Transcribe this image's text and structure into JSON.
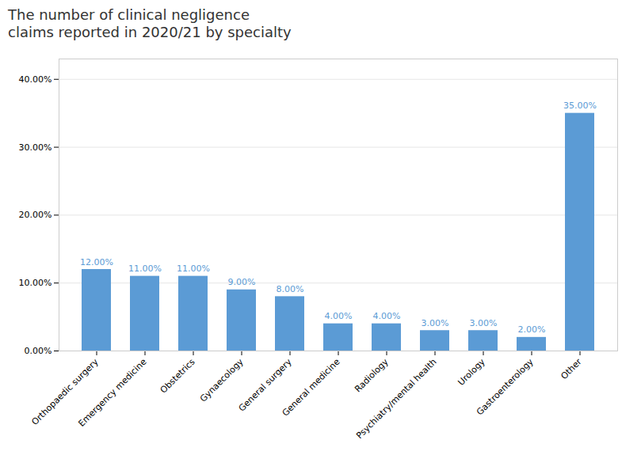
{
  "chart_data": {
    "type": "bar",
    "title": "The number of clinical negligence\nclaims reported in 2020/21 by specialty",
    "categories": [
      "Orthopaedic surgery",
      "Emergency medicine",
      "Obstetrics",
      "Gynaecology",
      "General surgery",
      "General medicine",
      "Radiology",
      "Psychiatry/mental health",
      "Urology",
      "Gastroenterology",
      "Other"
    ],
    "values": [
      12.0,
      11.0,
      11.0,
      9.0,
      8.0,
      4.0,
      4.0,
      3.0,
      3.0,
      2.0,
      35.0
    ],
    "value_labels": [
      "12.00%",
      "11.00%",
      "11.00%",
      "9.00%",
      "8.00%",
      "4.00%",
      "4.00%",
      "3.00%",
      "3.00%",
      "2.00%",
      "35.00%"
    ],
    "data_labels": true,
    "color": "#5b9bd5",
    "ylim": [
      0,
      43
    ],
    "yticks": [
      {
        "value": 0,
        "label": "0.00%"
      },
      {
        "value": 10,
        "label": "10.00%"
      },
      {
        "value": 20,
        "label": "20.00%"
      },
      {
        "value": 30,
        "label": "30.00%"
      },
      {
        "value": 40,
        "label": "40.00%"
      }
    ],
    "grid": true
  }
}
